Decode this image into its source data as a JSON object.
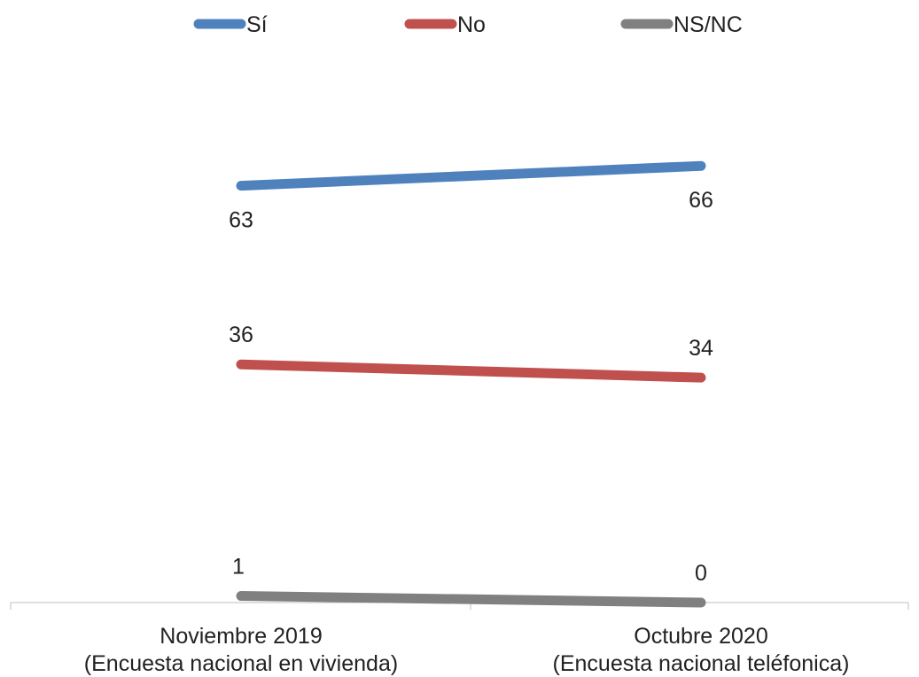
{
  "chart_data": {
    "type": "line",
    "categories": [
      [
        "Noviembre 2019",
        "(Encuesta nacional en vivienda)"
      ],
      [
        "Octubre 2020",
        "(Encuesta nacional teléfonica)"
      ]
    ],
    "series": [
      {
        "name": "Sí",
        "values": [
          63,
          66
        ],
        "color": "#4F81BD"
      },
      {
        "name": "No",
        "values": [
          36,
          34
        ],
        "color": "#C0504D"
      },
      {
        "name": "NS/NC",
        "values": [
          1,
          0
        ],
        "color": "#808080"
      }
    ],
    "ylim": [
      0,
      80
    ],
    "grid": false,
    "legend_position": "top",
    "axis_color": "#BFBFBF"
  }
}
